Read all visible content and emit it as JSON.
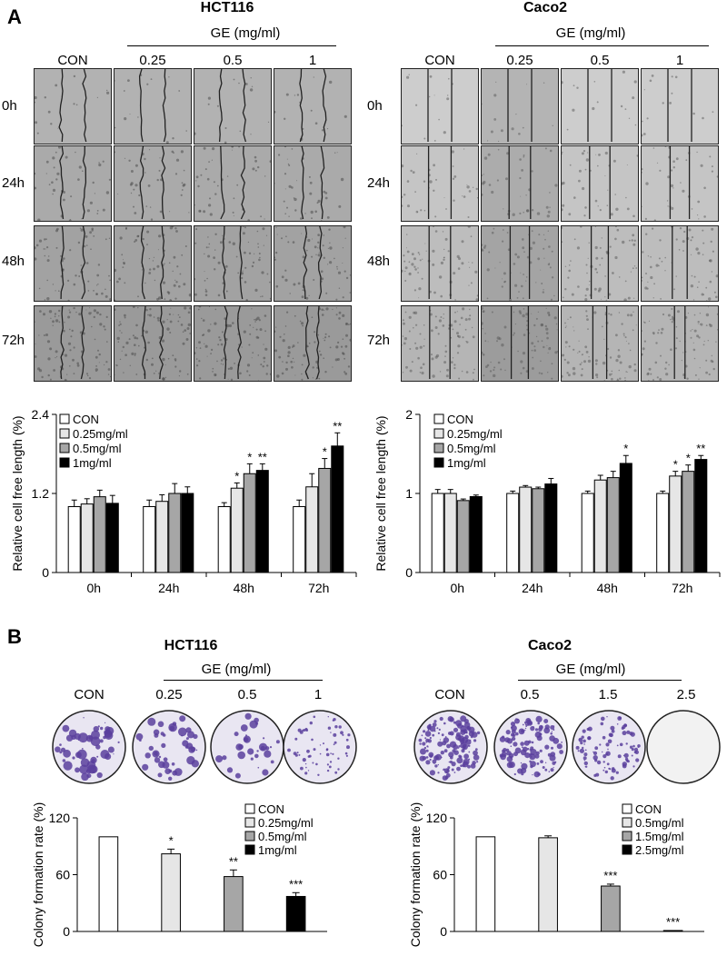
{
  "panel_a": {
    "letter": "A",
    "left": {
      "title": "HCT116",
      "treatment_header": "GE (mg/ml)",
      "columns": [
        "CON",
        "0.25",
        "0.5",
        "1"
      ],
      "rows": [
        "0h",
        "24h",
        "48h",
        "72h"
      ]
    },
    "right": {
      "title": "Caco2",
      "treatment_header": "GE (mg/ml)",
      "columns": [
        "CON",
        "0.25",
        "0.5",
        "1"
      ],
      "rows": [
        "0h",
        "24h",
        "48h",
        "72h"
      ]
    }
  },
  "panel_b": {
    "letter": "B",
    "left": {
      "title": "HCT116",
      "treatment_header": "GE (mg/ml)",
      "columns": [
        "CON",
        "0.25",
        "0.5",
        "1"
      ]
    },
    "right": {
      "title": "Caco2",
      "treatment_header": "GE (mg/ml)",
      "columns": [
        "CON",
        "0.5",
        "1.5",
        "2.5"
      ]
    }
  },
  "colors": {
    "con": "#ffffff",
    "dose1": "#e6e6e6",
    "dose2": "#a6a6a6",
    "dose3": "#000000",
    "stain": "#5b3f9e"
  },
  "chart_data": [
    {
      "id": "a-hct116",
      "type": "bar",
      "ylabel": "Relative cell free length (%)",
      "ylim": [
        0,
        2.4
      ],
      "yticks": [
        "0",
        "1.2",
        "2.4"
      ],
      "categories": [
        "0h",
        "24h",
        "48h",
        "72h"
      ],
      "legend_placement": "top-left",
      "series": [
        {
          "name": "CON",
          "fill": "#ffffff",
          "values": [
            1.0,
            1.0,
            1.0,
            1.0
          ],
          "errors": [
            0.1,
            0.1,
            0.06,
            0.1
          ],
          "stars": [
            "",
            "",
            "",
            ""
          ]
        },
        {
          "name": "0.25mg/ml",
          "fill": "#e6e6e6",
          "values": [
            1.04,
            1.08,
            1.28,
            1.3
          ],
          "errors": [
            0.08,
            0.1,
            0.08,
            0.2
          ],
          "stars": [
            "",
            "",
            "*",
            ""
          ]
        },
        {
          "name": "0.5mg/ml",
          "fill": "#a6a6a6",
          "values": [
            1.15,
            1.2,
            1.5,
            1.58
          ],
          "errors": [
            0.1,
            0.15,
            0.15,
            0.15
          ],
          "stars": [
            "",
            "",
            "*",
            "*"
          ]
        },
        {
          "name": "1mg/ml",
          "fill": "#000000",
          "values": [
            1.05,
            1.2,
            1.55,
            1.92
          ],
          "errors": [
            0.12,
            0.1,
            0.1,
            0.2
          ],
          "stars": [
            "",
            "",
            "**",
            "**"
          ]
        }
      ]
    },
    {
      "id": "a-caco2",
      "type": "bar",
      "ylabel": "Relative cell free length (%)",
      "ylim": [
        0,
        2
      ],
      "yticks": [
        "0",
        "1",
        "2"
      ],
      "categories": [
        "0h",
        "24h",
        "48h",
        "72h"
      ],
      "legend_placement": "top-left",
      "series": [
        {
          "name": "CON",
          "fill": "#ffffff",
          "values": [
            1.0,
            1.0,
            1.0,
            1.0
          ],
          "errors": [
            0.05,
            0.03,
            0.03,
            0.03
          ],
          "stars": [
            "",
            "",
            "",
            ""
          ]
        },
        {
          "name": "0.25mg/ml",
          "fill": "#e6e6e6",
          "values": [
            1.0,
            1.08,
            1.17,
            1.22
          ],
          "errors": [
            0.05,
            0.02,
            0.06,
            0.06
          ],
          "stars": [
            "",
            "",
            "",
            "*"
          ]
        },
        {
          "name": "0.5mg/ml",
          "fill": "#a6a6a6",
          "values": [
            0.91,
            1.06,
            1.2,
            1.28
          ],
          "errors": [
            0.02,
            0.02,
            0.08,
            0.08
          ],
          "stars": [
            "",
            "",
            "",
            "*"
          ]
        },
        {
          "name": "1mg/ml",
          "fill": "#000000",
          "values": [
            0.96,
            1.12,
            1.38,
            1.43
          ],
          "errors": [
            0.02,
            0.07,
            0.1,
            0.05
          ],
          "stars": [
            "",
            "",
            "*",
            "**"
          ]
        }
      ]
    },
    {
      "id": "b-hct116",
      "type": "bar",
      "ylabel": "Colony formation rate (%)",
      "ylim": [
        0,
        120
      ],
      "yticks": [
        "0",
        "60",
        "120"
      ],
      "categories": [
        "CON",
        "0.25mg/ml",
        "0.5mg/ml",
        "1mg/ml"
      ],
      "legend_placement": "top-right",
      "series": [
        {
          "name": "CON",
          "fill": "#ffffff",
          "value": 100,
          "error": 0,
          "stars": ""
        },
        {
          "name": "0.25mg/ml",
          "fill": "#e6e6e6",
          "value": 82,
          "error": 5,
          "stars": "*"
        },
        {
          "name": "0.5mg/ml",
          "fill": "#a6a6a6",
          "value": 58,
          "error": 7,
          "stars": "**"
        },
        {
          "name": "1mg/ml",
          "fill": "#000000",
          "value": 37,
          "error": 4,
          "stars": "***"
        }
      ]
    },
    {
      "id": "b-caco2",
      "type": "bar",
      "ylabel": "Colony formation rate (%)",
      "ylim": [
        0,
        120
      ],
      "yticks": [
        "0",
        "60",
        "120"
      ],
      "categories": [
        "CON",
        "0.5mg/ml",
        "1.5mg/ml",
        "2.5mg/ml"
      ],
      "legend_placement": "top-right",
      "series": [
        {
          "name": "CON",
          "fill": "#ffffff",
          "value": 100,
          "error": 0,
          "stars": ""
        },
        {
          "name": "0.5mg/ml",
          "fill": "#e6e6e6",
          "value": 99,
          "error": 2,
          "stars": ""
        },
        {
          "name": "1.5mg/ml",
          "fill": "#a6a6a6",
          "value": 48,
          "error": 2,
          "stars": "***"
        },
        {
          "name": "2.5mg/ml",
          "fill": "#000000",
          "value": 1,
          "error": 0,
          "stars": "***"
        }
      ]
    }
  ]
}
